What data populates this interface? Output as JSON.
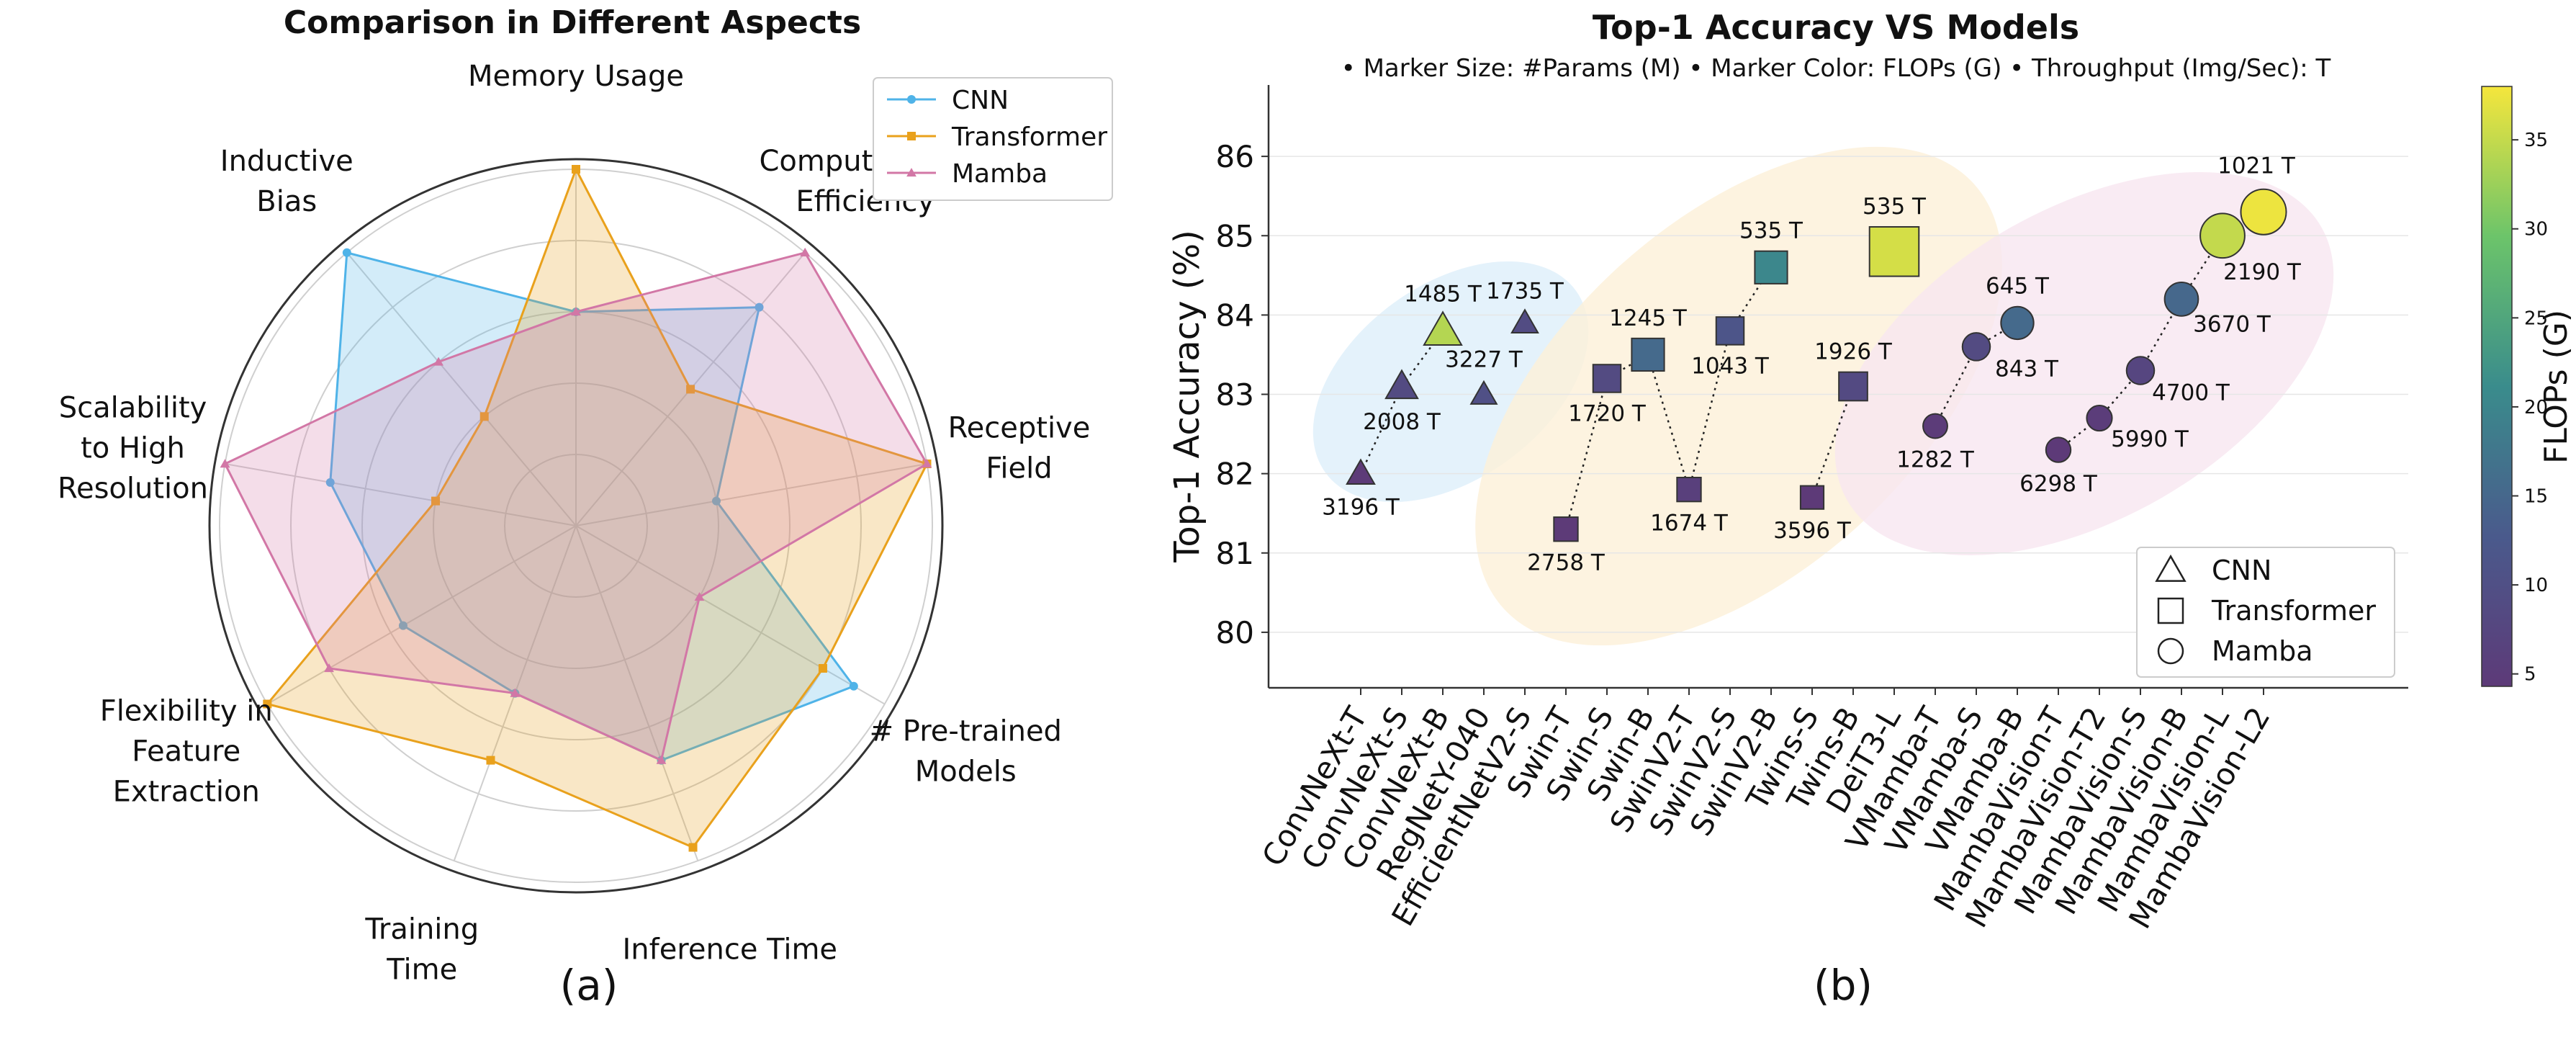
{
  "chart_data": [
    {
      "type": "radar",
      "title": "Comparison in Different Aspects",
      "panel_label": "(a)",
      "axes": [
        "Memory Usage",
        "Computational\nEfficiency",
        "Receptive\nField",
        "# Pre-trained\nModels",
        "Inference Time",
        "Training\nTime",
        "Flexibility in\nFeature\nExtraction",
        "Scalability\nto High\nResolution",
        "Inductive\nBias"
      ],
      "rmax": 5,
      "grid_levels": [
        1,
        2,
        3,
        4,
        5
      ],
      "legend_position": "top-right",
      "series": [
        {
          "name": "CNN",
          "marker": "circle",
          "color": "#4fb3e8",
          "values": [
            3.0,
            4.0,
            2.0,
            4.5,
            3.5,
            2.5,
            2.8,
            3.5,
            5.0
          ]
        },
        {
          "name": "Transformer",
          "marker": "square",
          "color": "#e9a11c",
          "values": [
            5.0,
            2.5,
            5.0,
            4.0,
            4.8,
            3.5,
            5.0,
            2.0,
            2.0
          ]
        },
        {
          "name": "Mamba",
          "marker": "triangle",
          "color": "#d277a6",
          "values": [
            3.0,
            5.0,
            5.0,
            2.0,
            3.5,
            2.5,
            4.0,
            5.0,
            3.0
          ]
        }
      ]
    },
    {
      "type": "scatter",
      "title": "Top-1 Accuracy VS Models",
      "subtitle": "• Marker Size: #Params (M) • Marker Color: FLOPs (G) • Throughput (Img/Sec): T",
      "panel_label": "(b)",
      "ylabel": "Top-1 Accuracy (%)",
      "ylim": [
        79.3,
        86.9
      ],
      "yticks": [
        80,
        81,
        82,
        83,
        84,
        85,
        86
      ],
      "colorbar": {
        "label": "FLOPs (G)",
        "min": 4.3,
        "max": 38,
        "ticks": [
          5,
          10,
          15,
          20,
          25,
          30,
          35
        ]
      },
      "legend_position": "bottom-right",
      "legend": [
        {
          "marker": "triangle",
          "label": "CNN"
        },
        {
          "marker": "square",
          "label": "Transformer"
        },
        {
          "marker": "circle",
          "label": "Mamba"
        }
      ],
      "family_colors": {
        "CNN": "#4fb3e8",
        "Transformer": "#e9a11c",
        "Mamba": "#d277a6"
      },
      "points": [
        {
          "model": "ConvNeXt-T",
          "family": "CNN",
          "acc": 82.0,
          "throughput": "3196 T",
          "flops": 4.5,
          "params": 28
        },
        {
          "model": "ConvNeXt-S",
          "family": "CNN",
          "acc": 83.1,
          "throughput": "2008 T",
          "flops": 8.7,
          "params": 50
        },
        {
          "model": "ConvNeXt-B",
          "family": "CNN",
          "acc": 83.8,
          "throughput": "1485 T",
          "flops": 34,
          "params": 89
        },
        {
          "model": "RegNetY-040",
          "family": "CNN",
          "acc": 83.0,
          "throughput": "3227 T",
          "flops": 10,
          "params": 20
        },
        {
          "model": "EfficientNetV2-S",
          "family": "CNN",
          "acc": 83.9,
          "throughput": "1735 T",
          "flops": 9,
          "params": 22
        },
        {
          "model": "Swin-T",
          "family": "Transformer",
          "acc": 81.3,
          "throughput": "2758 T",
          "flops": 4.5,
          "params": 28
        },
        {
          "model": "Swin-S",
          "family": "Transformer",
          "acc": 83.2,
          "throughput": "1720 T",
          "flops": 8.7,
          "params": 50
        },
        {
          "model": "Swin-B",
          "family": "Transformer",
          "acc": 83.5,
          "throughput": "1245 T",
          "flops": 15.4,
          "params": 88
        },
        {
          "model": "SwinV2-T",
          "family": "Transformer",
          "acc": 81.8,
          "throughput": "1674 T",
          "flops": 5.9,
          "params": 28
        },
        {
          "model": "SwinV2-S",
          "family": "Transformer",
          "acc": 83.8,
          "throughput": "1043 T",
          "flops": 11.5,
          "params": 50
        },
        {
          "model": "SwinV2-B",
          "family": "Transformer",
          "acc": 84.6,
          "throughput": "535 T",
          "flops": 20.3,
          "params": 88
        },
        {
          "model": "Twins-S",
          "family": "Transformer",
          "acc": 81.7,
          "throughput": "3596 T",
          "flops": 2.9,
          "params": 24
        },
        {
          "model": "Twins-B",
          "family": "Transformer",
          "acc": 83.1,
          "throughput": "1926 T",
          "flops": 8.6,
          "params": 56
        },
        {
          "model": "DeiT3-L",
          "family": "Transformer",
          "acc": 84.8,
          "throughput": "535 T",
          "flops": 36,
          "params": 304
        },
        {
          "model": "VMamba-T",
          "family": "Mamba",
          "acc": 82.6,
          "throughput": "1282 T",
          "flops": 4.9,
          "params": 30
        },
        {
          "model": "VMamba-S",
          "family": "Mamba",
          "acc": 83.6,
          "throughput": "843 T",
          "flops": 8.7,
          "params": 50
        },
        {
          "model": "VMamba-B",
          "family": "Mamba",
          "acc": 83.9,
          "throughput": "645 T",
          "flops": 15.4,
          "params": 89
        },
        {
          "model": "MambaVision-T",
          "family": "Mamba",
          "acc": 82.3,
          "throughput": "6298 T",
          "flops": 4.4,
          "params": 32
        },
        {
          "model": "MambaVision-T2",
          "family": "Mamba",
          "acc": 82.7,
          "throughput": "5990 T",
          "flops": 5.1,
          "params": 35
        },
        {
          "model": "MambaVision-S",
          "family": "Mamba",
          "acc": 83.3,
          "throughput": "4700 T",
          "flops": 7.5,
          "params": 50
        },
        {
          "model": "MambaVision-B",
          "family": "Mamba",
          "acc": 84.2,
          "throughput": "3670 T",
          "flops": 15,
          "params": 98
        },
        {
          "model": "MambaVision-L",
          "family": "Mamba",
          "acc": 85.0,
          "throughput": "2190 T",
          "flops": 34.9,
          "params": 228
        },
        {
          "model": "MambaVision-L2",
          "family": "Mamba",
          "acc": 85.3,
          "throughput": "1021 T",
          "flops": 37.5,
          "params": 241
        }
      ],
      "dotted_paths": [
        [
          "ConvNeXt-T",
          "ConvNeXt-S",
          "ConvNeXt-B"
        ],
        [
          "Swin-T",
          "Swin-S",
          "Swin-B",
          "SwinV2-T",
          "SwinV2-S",
          "SwinV2-B"
        ],
        [
          "Twins-S",
          "Twins-B"
        ],
        [
          "VMamba-T",
          "VMamba-S",
          "VMamba-B"
        ],
        [
          "MambaVision-T",
          "MambaVision-T2",
          "MambaVision-S",
          "MambaVision-B",
          "MambaVision-L",
          "MambaVision-L2"
        ]
      ]
    }
  ]
}
